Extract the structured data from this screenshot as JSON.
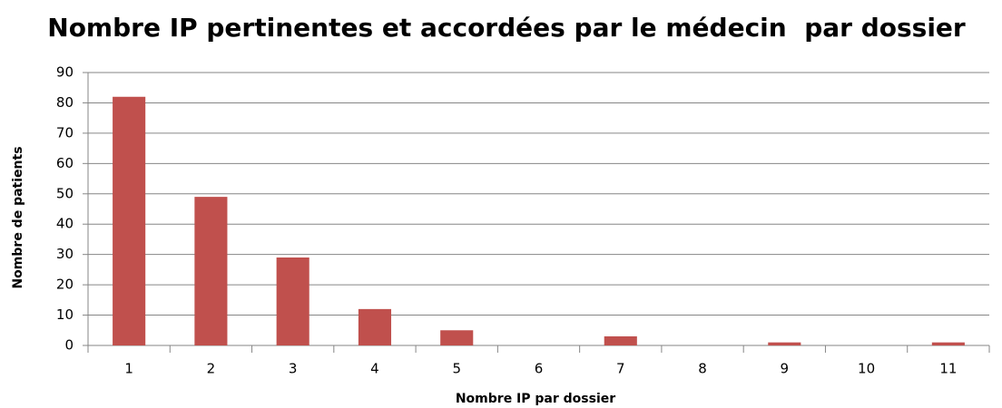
{
  "chart_data": {
    "type": "bar",
    "title": "Nombre IP pertinentes et accordées par le médecin  par dossier",
    "x_label": "Nombre IP par dossier",
    "y_label": "Nombre de patients",
    "categories": [
      "1",
      "2",
      "3",
      "4",
      "5",
      "6",
      "7",
      "8",
      "9",
      "10",
      "11"
    ],
    "values": [
      82,
      49,
      29,
      12,
      5,
      0,
      3,
      0,
      1,
      0,
      1
    ],
    "color": "#c0504d",
    "ylim": [
      0,
      90
    ],
    "yticks": [
      0,
      10,
      20,
      30,
      40,
      50,
      60,
      70,
      80,
      90
    ],
    "grid": true
  }
}
